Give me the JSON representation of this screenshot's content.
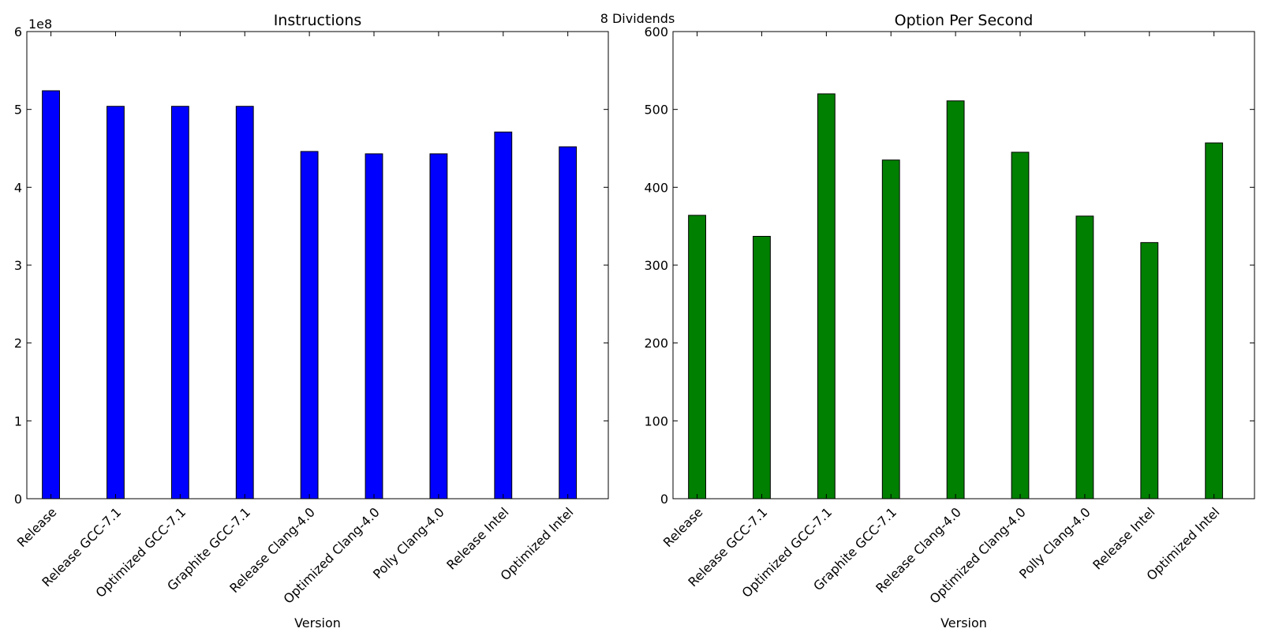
{
  "figure": {
    "suptitle": "8 Dividends"
  },
  "chart_data": [
    {
      "type": "bar",
      "title": "Instructions",
      "xlabel": "Version",
      "ylabel": "",
      "offset_text": "1e8",
      "categories": [
        "Release",
        "Release GCC-7.1",
        "Optimized GCC-7.1",
        "Graphite GCC-7.1",
        "Release Clang-4.0",
        "Optimized Clang-4.0",
        "Polly Clang-4.0",
        "Release Intel",
        "Optimized Intel"
      ],
      "values": [
        524000000,
        504000000,
        504000000,
        504000000,
        446000000,
        443000000,
        443000000,
        471000000,
        452000000
      ],
      "ylim": [
        0,
        600000000
      ],
      "yticks": [
        0,
        100000000,
        200000000,
        300000000,
        400000000,
        500000000,
        600000000
      ],
      "ytick_labels": [
        "0",
        "1",
        "2",
        "3",
        "4",
        "5",
        "6"
      ],
      "color": "#0000ff",
      "grid": false
    },
    {
      "type": "bar",
      "title": "Option Per Second",
      "xlabel": "Version",
      "ylabel": "",
      "categories": [
        "Release",
        "Release GCC-7.1",
        "Optimized GCC-7.1",
        "Graphite GCC-7.1",
        "Release Clang-4.0",
        "Optimized Clang-4.0",
        "Polly Clang-4.0",
        "Release Intel",
        "Optimized Intel"
      ],
      "values": [
        364,
        337,
        520,
        435,
        511,
        445,
        363,
        329,
        457
      ],
      "ylim": [
        0,
        600
      ],
      "yticks": [
        0,
        100,
        200,
        300,
        400,
        500,
        600
      ],
      "ytick_labels": [
        "0",
        "100",
        "200",
        "300",
        "400",
        "500",
        "600"
      ],
      "color": "#008000",
      "grid": false
    }
  ]
}
